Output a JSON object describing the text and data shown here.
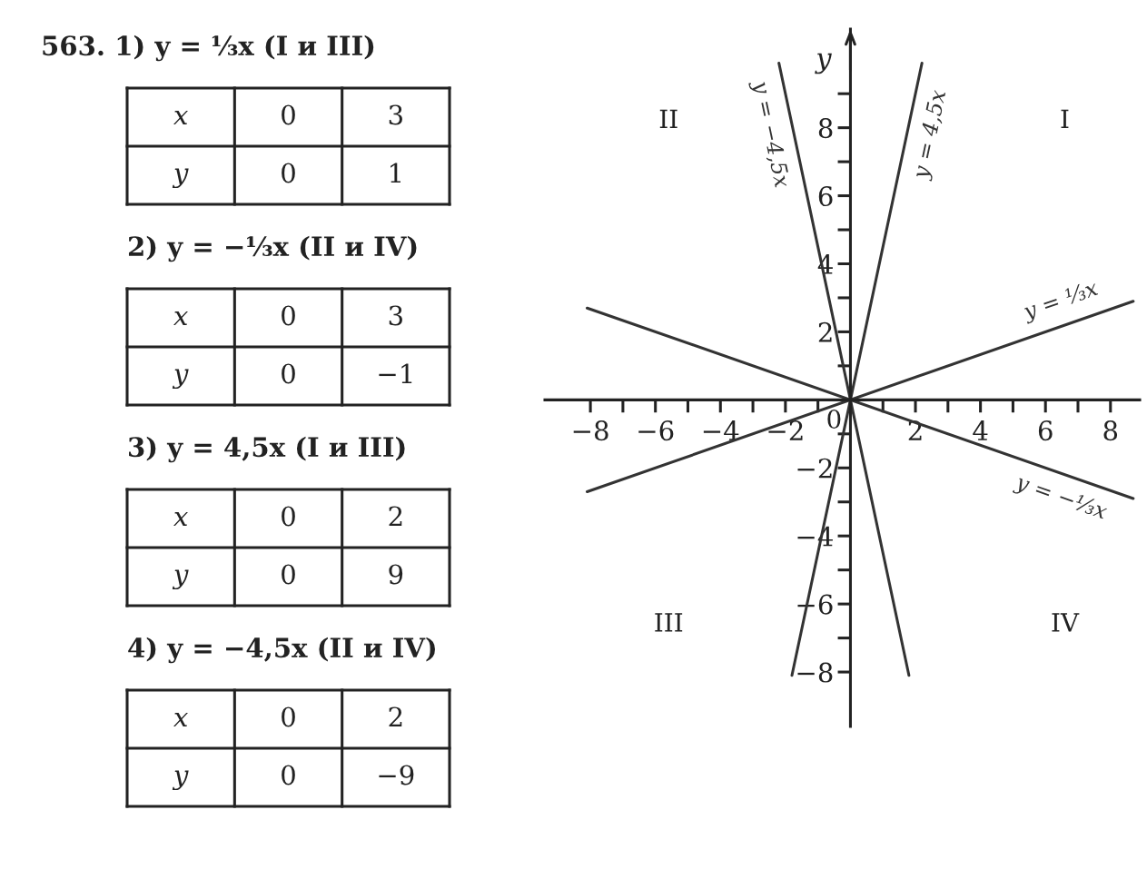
{
  "chart_data": [
    {
      "type": "other",
      "title": "563. 1) y = ⅓x (I и III)",
      "annotations": [
        "x",
        "0",
        "3",
        "y",
        "0",
        "1"
      ]
    },
    {
      "type": "other",
      "title": "2) y = −⅓x (II и IV)",
      "annotations": [
        "x",
        "0",
        "3",
        "y",
        "0",
        "−1"
      ]
    },
    {
      "type": "other",
      "title": "3) y = 4,5x (I и III)",
      "annotations": [
        "x",
        "0",
        "2",
        "y",
        "0",
        "9"
      ]
    },
    {
      "type": "other",
      "title": "4) y = −4,5x (II и IV)",
      "annotations": [
        "x",
        "0",
        "2",
        "y",
        "0",
        "−9"
      ]
    },
    {
      "type": "line",
      "ylabel": "y",
      "xlim": [
        -9.4,
        8.9
      ],
      "ylim": [
        -9.6,
        10.9
      ],
      "xticks": [
        {
          "value": -8,
          "label": "−8"
        },
        {
          "value": -7,
          "label": null
        },
        {
          "value": -6,
          "label": "−6"
        },
        {
          "value": -5,
          "label": null
        },
        {
          "value": -4,
          "label": "−4"
        },
        {
          "value": -3,
          "label": null
        },
        {
          "value": -2,
          "label": "−2"
        },
        {
          "value": -1,
          "label": null
        },
        {
          "value": 1,
          "label": null
        },
        {
          "value": 2,
          "label": "2"
        },
        {
          "value": 3,
          "label": null
        },
        {
          "value": 4,
          "label": "4"
        },
        {
          "value": 5,
          "label": null
        },
        {
          "value": 6,
          "label": "6"
        },
        {
          "value": 7,
          "label": null
        },
        {
          "value": 8,
          "label": "8"
        }
      ],
      "yticks": [
        {
          "value": -8,
          "label": "−8"
        },
        {
          "value": -7,
          "label": null
        },
        {
          "value": -6,
          "label": "−6"
        },
        {
          "value": -5,
          "label": null
        },
        {
          "value": -4,
          "label": "−4"
        },
        {
          "value": -3,
          "label": null
        },
        {
          "value": -2,
          "label": "−2"
        },
        {
          "value": -1,
          "label": null
        },
        {
          "value": 1,
          "label": null
        },
        {
          "value": 2,
          "label": "2"
        },
        {
          "value": 3,
          "label": null
        },
        {
          "value": 4,
          "label": "4"
        },
        {
          "value": 5,
          "label": null
        },
        {
          "value": 6,
          "label": "6"
        },
        {
          "value": 7,
          "label": null
        },
        {
          "value": 8,
          "label": "8"
        },
        {
          "value": 9,
          "label": null
        }
      ],
      "series": [
        {
          "name": "y = −4,5x",
          "color": "#333333",
          "x": [
            -2.2,
            1.8
          ],
          "values": [
            9.9,
            -8.1
          ]
        },
        {
          "name": "y = 4,5x",
          "color": "#333333",
          "x": [
            -1.8,
            2.2
          ],
          "values": [
            -8.1,
            9.9
          ]
        },
        {
          "name": "y = ⅓x",
          "color": "#333333",
          "x": [
            -8.1,
            8.7
          ],
          "values": [
            -2.7,
            2.9
          ]
        },
        {
          "name": "y = −⅓x",
          "color": "#333333",
          "x": [
            -8.1,
            8.7
          ],
          "values": [
            2.7,
            -2.9
          ]
        }
      ],
      "annotations": [
        "I",
        "II",
        "III",
        "IV",
        {
          "text": "0",
          "x": 0,
          "y": 0
        }
      ]
    }
  ]
}
